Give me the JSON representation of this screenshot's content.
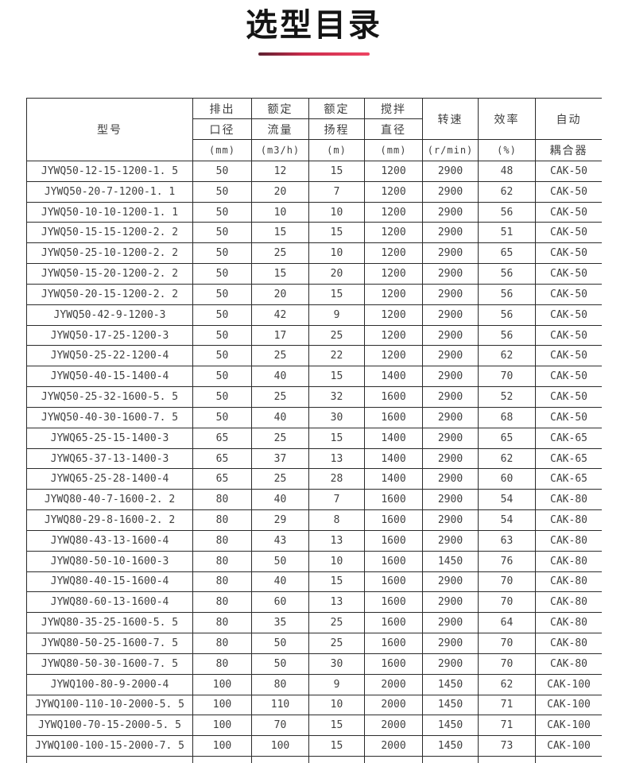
{
  "title": "选型目录",
  "accent_color": "#c92b4b",
  "table": {
    "model_header": "型号",
    "spec_cols": [
      {
        "l1": "排出",
        "l2": "口径",
        "unit": "(mm)"
      },
      {
        "l1": "额定",
        "l2": "流量",
        "unit": "(m3/h)"
      },
      {
        "l1": "额定",
        "l2": "扬程",
        "unit": "(m)"
      },
      {
        "l1": "搅拌",
        "l2": "直径",
        "unit": "(mm)"
      }
    ],
    "merged_cols": [
      {
        "label": "转速",
        "unit": "(r/min)"
      },
      {
        "label": "效率",
        "unit": "(%)"
      },
      {
        "label": "自动",
        "unit": "耦合器"
      }
    ],
    "rows": [
      [
        "JYWQ50-12-15-1200-1. 5",
        "50",
        "12",
        "15",
        "1200",
        "2900",
        "48",
        "CAK-50"
      ],
      [
        "JYWQ50-20-7-1200-1. 1",
        "50",
        "20",
        "7",
        "1200",
        "2900",
        "62",
        "CAK-50"
      ],
      [
        "JYWQ50-10-10-1200-1. 1",
        "50",
        "10",
        "10",
        "1200",
        "2900",
        "56",
        "CAK-50"
      ],
      [
        "JYWQ50-15-15-1200-2. 2",
        "50",
        "15",
        "15",
        "1200",
        "2900",
        "51",
        "CAK-50"
      ],
      [
        "JYWQ50-25-10-1200-2. 2",
        "50",
        "25",
        "10",
        "1200",
        "2900",
        "65",
        "CAK-50"
      ],
      [
        "JYWQ50-15-20-1200-2. 2",
        "50",
        "15",
        "20",
        "1200",
        "2900",
        "56",
        "CAK-50"
      ],
      [
        "JYWQ50-20-15-1200-2. 2",
        "50",
        "20",
        "15",
        "1200",
        "2900",
        "56",
        "CAK-50"
      ],
      [
        "JYWQ50-42-9-1200-3",
        "50",
        "42",
        "9",
        "1200",
        "2900",
        "56",
        "CAK-50"
      ],
      [
        "JYWQ50-17-25-1200-3",
        "50",
        "17",
        "25",
        "1200",
        "2900",
        "56",
        "CAK-50"
      ],
      [
        "JYWQ50-25-22-1200-4",
        "50",
        "25",
        "22",
        "1200",
        "2900",
        "62",
        "CAK-50"
      ],
      [
        "JYWQ50-40-15-1400-4",
        "50",
        "40",
        "15",
        "1400",
        "2900",
        "70",
        "CAK-50"
      ],
      [
        "JYWQ50-25-32-1600-5. 5",
        "50",
        "25",
        "32",
        "1600",
        "2900",
        "52",
        "CAK-50"
      ],
      [
        "JYWQ50-40-30-1600-7. 5",
        "50",
        "40",
        "30",
        "1600",
        "2900",
        "68",
        "CAK-50"
      ],
      [
        "JYWQ65-25-15-1400-3",
        "65",
        "25",
        "15",
        "1400",
        "2900",
        "65",
        "CAK-65"
      ],
      [
        "JYWQ65-37-13-1400-3",
        "65",
        "37",
        "13",
        "1400",
        "2900",
        "62",
        "CAK-65"
      ],
      [
        "JYWQ65-25-28-1400-4",
        "65",
        "25",
        "28",
        "1400",
        "2900",
        "60",
        "CAK-65"
      ],
      [
        "JYWQ80-40-7-1600-2. 2",
        "80",
        "40",
        "7",
        "1600",
        "2900",
        "54",
        "CAK-80"
      ],
      [
        "JYWQ80-29-8-1600-2. 2",
        "80",
        "29",
        "8",
        "1600",
        "2900",
        "54",
        "CAK-80"
      ],
      [
        "JYWQ80-43-13-1600-4",
        "80",
        "43",
        "13",
        "1600",
        "2900",
        "63",
        "CAK-80"
      ],
      [
        "JYWQ80-50-10-1600-3",
        "80",
        "50",
        "10",
        "1600",
        "1450",
        "76",
        "CAK-80"
      ],
      [
        "JYWQ80-40-15-1600-4",
        "80",
        "40",
        "15",
        "1600",
        "2900",
        "70",
        "CAK-80"
      ],
      [
        "JYWQ80-60-13-1600-4",
        "80",
        "60",
        "13",
        "1600",
        "2900",
        "70",
        "CAK-80"
      ],
      [
        "JYWQ80-35-25-1600-5. 5",
        "80",
        "35",
        "25",
        "1600",
        "2900",
        "64",
        "CAK-80"
      ],
      [
        "JYWQ80-50-25-1600-7. 5",
        "80",
        "50",
        "25",
        "1600",
        "2900",
        "70",
        "CAK-80"
      ],
      [
        "JYWQ80-50-30-1600-7. 5",
        "80",
        "50",
        "30",
        "1600",
        "2900",
        "70",
        "CAK-80"
      ],
      [
        "JYWQ100-80-9-2000-4",
        "100",
        "80",
        "9",
        "2000",
        "1450",
        "62",
        "CAK-100"
      ],
      [
        "JYWQ100-110-10-2000-5. 5",
        "100",
        "110",
        "10",
        "2000",
        "1450",
        "71",
        "CAK-100"
      ],
      [
        "JYWQ100-70-15-2000-5. 5",
        "100",
        "70",
        "15",
        "2000",
        "1450",
        "71",
        "CAK-100"
      ],
      [
        "JYWQ100-100-15-2000-7. 5",
        "100",
        "100",
        "15",
        "2000",
        "1450",
        "73",
        "CAK-100"
      ]
    ]
  }
}
